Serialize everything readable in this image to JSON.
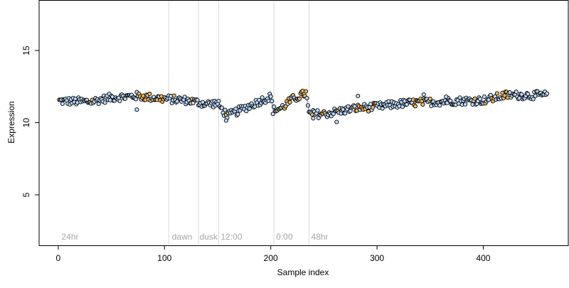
{
  "chart_data": {
    "type": "scatter",
    "title": "",
    "xlabel": "Sample index",
    "ylabel": "Expression",
    "xlim": [
      -18,
      480
    ],
    "ylim": [
      1.5,
      18.5
    ],
    "xticks": [
      0,
      100,
      200,
      300,
      400
    ],
    "yticks": [
      5,
      10,
      15
    ],
    "grid": false,
    "legend": "none",
    "vlines": [
      104,
      132,
      151,
      203,
      236
    ],
    "vline_labels": [
      {
        "text": "24hr",
        "x": 3
      },
      {
        "text": "dawn",
        "x": 107
      },
      {
        "text": "dusk",
        "x": 133
      },
      {
        "text": "12:00",
        "x": 153
      },
      {
        "text": "0:00",
        "x": 205
      },
      {
        "text": "48hr",
        "x": 238
      }
    ],
    "label_y": 1.9,
    "colors": {
      "point_fill_default": "#bfdcff",
      "point_fill_highlight": "#f5b75a",
      "point_stroke": "#000000",
      "trend_line": "#8fa9d9",
      "vline": "#d9d9d9",
      "vline_label": "#a6a6a6"
    },
    "series": [
      {
        "marker": "circle",
        "trend": [
          [
            0,
            11.5
          ],
          [
            30,
            11.5
          ],
          [
            50,
            11.7
          ],
          [
            65,
            11.8
          ],
          [
            74,
            11.8
          ],
          [
            100,
            11.7
          ],
          [
            120,
            11.6
          ],
          [
            140,
            11.3
          ],
          [
            150,
            11.4
          ],
          [
            153,
            11.0
          ],
          [
            160,
            10.5
          ],
          [
            162,
            10.5
          ],
          [
            175,
            11.0
          ],
          [
            190,
            11.5
          ],
          [
            200,
            11.9
          ],
          [
            202,
            10.9
          ],
          [
            210,
            11.0
          ],
          [
            220,
            11.6
          ],
          [
            233,
            12.0
          ],
          [
            236,
            10.8
          ],
          [
            250,
            10.7
          ],
          [
            280,
            11.0
          ],
          [
            300,
            11.1
          ],
          [
            340,
            11.4
          ],
          [
            370,
            11.5
          ],
          [
            400,
            11.5
          ],
          [
            420,
            11.8
          ],
          [
            460,
            11.9
          ]
        ],
        "anchors": [
          [
            0,
            11.5
          ],
          [
            30,
            11.45
          ],
          [
            50,
            11.75
          ],
          [
            65,
            11.8
          ],
          [
            74,
            11.85
          ],
          [
            100,
            11.65
          ],
          [
            120,
            11.55
          ],
          [
            140,
            11.3
          ],
          [
            150,
            11.35
          ],
          [
            155,
            10.8
          ],
          [
            160,
            10.5
          ],
          [
            175,
            11.0
          ],
          [
            190,
            11.5
          ],
          [
            200,
            11.8
          ],
          [
            202,
            10.85
          ],
          [
            210,
            11.0
          ],
          [
            220,
            11.6
          ],
          [
            233,
            12.05
          ],
          [
            236,
            10.6
          ],
          [
            250,
            10.6
          ],
          [
            265,
            10.8
          ],
          [
            280,
            11.0
          ],
          [
            300,
            11.1
          ],
          [
            320,
            11.3
          ],
          [
            340,
            11.4
          ],
          [
            370,
            11.5
          ],
          [
            400,
            11.55
          ],
          [
            410,
            11.7
          ],
          [
            420,
            11.9
          ],
          [
            460,
            11.9
          ]
        ],
        "count": 460,
        "jitter": 0.28,
        "highlight_ranges": [
          [
            75,
            100
          ],
          [
            120,
            130
          ],
          [
            205,
            235
          ],
          [
            280,
            300
          ],
          [
            330,
            345
          ],
          [
            408,
            425
          ]
        ],
        "outliers": [
          [
            74,
            10.9
          ],
          [
            158,
            10.15
          ],
          [
            240,
            10.3
          ],
          [
            262,
            10.05
          ],
          [
            282,
            11.85
          ],
          [
            344,
            11.95
          ],
          [
            365,
            11.8
          ]
        ]
      }
    ]
  }
}
